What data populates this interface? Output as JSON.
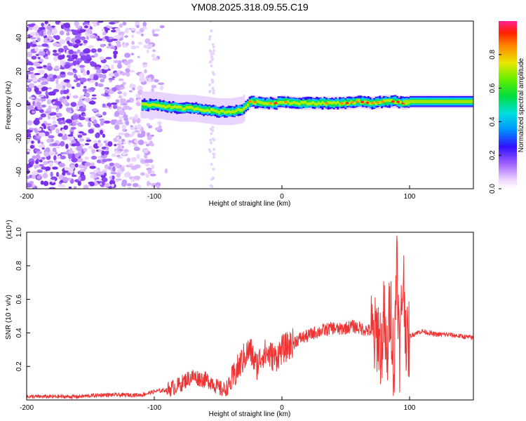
{
  "colors": {
    "snr_line": "#ee3333",
    "axis": "#000000",
    "background": "#ffffff"
  },
  "chart_data": [
    {
      "type": "heatmap",
      "title": "YM08.2025.318.09.55.C19",
      "xlabel": "Height of straight line (km)",
      "ylabel": "Frequency (Hz)",
      "xlim": [
        -200,
        150
      ],
      "ylim": [
        -50,
        50
      ],
      "xticks": [
        "-200",
        "-100",
        "0",
        "100"
      ],
      "xtick_values": [
        -200,
        -100,
        0,
        100
      ],
      "yticks": [
        "-40",
        "-20",
        "0",
        "20",
        "40"
      ],
      "ytick_values": [
        -40,
        -20,
        0,
        20,
        40
      ],
      "ridge": {
        "x": [
          -110,
          -100,
          -90,
          -80,
          -70,
          -60,
          -50,
          -40,
          -32,
          -25,
          -15,
          -5,
          0,
          10,
          20,
          30,
          40,
          50,
          60,
          70,
          80,
          90,
          95,
          100,
          120,
          150
        ],
        "y": [
          0,
          0,
          -1,
          -2,
          -2,
          -3,
          -4,
          -4,
          -3,
          2,
          1,
          1,
          2,
          1,
          1,
          1,
          1,
          1,
          2,
          1,
          2,
          2,
          1,
          2,
          2,
          2
        ]
      },
      "colorbar": {
        "label": "Normalized spectral amplitude",
        "range": [
          0.0,
          1.0
        ],
        "tick_labels": [
          "0.0",
          "0.2",
          "0.4",
          "0.6",
          "0.8"
        ],
        "tick_values": [
          0.0,
          0.2,
          0.4,
          0.6,
          0.8
        ]
      }
    },
    {
      "type": "line",
      "xlabel": "Height of straight line (km)",
      "ylabel": "SNR (10 * v/v)",
      "scale_label": "(x10⁴)",
      "xlim": [
        -200,
        150
      ],
      "ylim": [
        0,
        1.0
      ],
      "xticks": [
        "-200",
        "-100",
        "0",
        "100"
      ],
      "xtick_values": [
        -200,
        -100,
        0,
        100
      ],
      "yticks": [
        "0.2",
        "0.4",
        "0.6",
        "0.8",
        "1.0"
      ],
      "ytick_values": [
        0.2,
        0.4,
        0.6,
        0.8,
        1.0
      ],
      "series": [
        {
          "name": "SNR",
          "x": [
            -200,
            -180,
            -160,
            -140,
            -120,
            -110,
            -100,
            -90,
            -80,
            -75,
            -70,
            -65,
            -60,
            -55,
            -50,
            -45,
            -40,
            -35,
            -30,
            -25,
            -20,
            -15,
            -10,
            -5,
            0,
            5,
            10,
            15,
            20,
            25,
            30,
            35,
            40,
            45,
            50,
            55,
            60,
            65,
            70,
            72,
            75,
            78,
            80,
            82,
            85,
            88,
            90,
            92,
            95,
            98,
            100,
            105,
            110,
            120,
            130,
            140,
            150
          ],
          "values": [
            0.02,
            0.02,
            0.02,
            0.03,
            0.03,
            0.03,
            0.05,
            0.06,
            0.09,
            0.12,
            0.14,
            0.13,
            0.12,
            0.11,
            0.07,
            0.06,
            0.1,
            0.18,
            0.25,
            0.3,
            0.2,
            0.28,
            0.27,
            0.25,
            0.3,
            0.32,
            0.35,
            0.37,
            0.38,
            0.4,
            0.41,
            0.42,
            0.43,
            0.42,
            0.43,
            0.44,
            0.43,
            0.42,
            0.41,
            0.35,
            0.42,
            0.3,
            0.5,
            0.2,
            0.6,
            0.15,
            0.95,
            0.25,
            0.75,
            0.3,
            0.38,
            0.4,
            0.41,
            0.39,
            0.39,
            0.38,
            0.37
          ]
        }
      ]
    }
  ]
}
